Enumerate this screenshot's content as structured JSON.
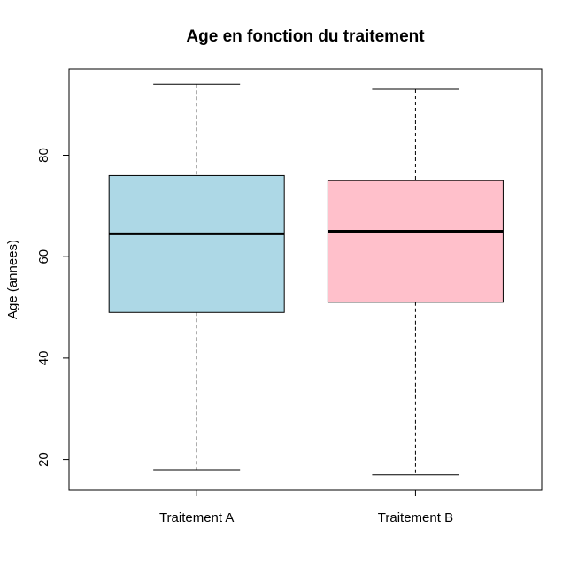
{
  "chart_data": {
    "type": "boxplot",
    "title": "Age en fonction du traitement",
    "xlabel": "",
    "ylabel": "Age (annees)",
    "ylim": [
      14,
      97
    ],
    "yticks": [
      20,
      40,
      60,
      80
    ],
    "grid": false,
    "legend": "none",
    "categories": [
      "Traitement A",
      "Traitement B"
    ],
    "boxes": [
      {
        "category": "Traitement A",
        "min": 18,
        "q1": 49,
        "median": 64.5,
        "q3": 76,
        "max": 94,
        "color": "#add8e6"
      },
      {
        "category": "Traitement B",
        "min": 17,
        "q1": 51,
        "median": 65,
        "q3": 75,
        "max": 93,
        "color": "#ffc0cb"
      }
    ]
  }
}
